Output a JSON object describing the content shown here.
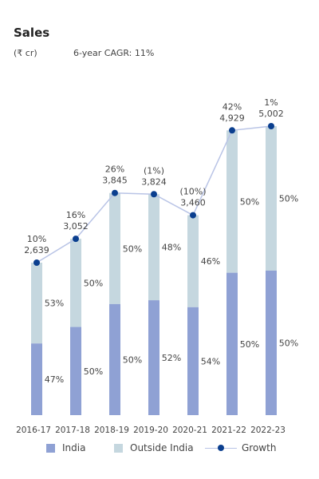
{
  "header": {
    "title": "Sales",
    "unit": "(₹ cr)",
    "cagr": "6-year CAGR: 11%"
  },
  "colors": {
    "india": "#8fa1d4",
    "outside": "#c5d7df",
    "growth_line": "#b9c4e6",
    "growth_dot": "#0b3f8f"
  },
  "chart_data": {
    "type": "bar",
    "stacked": true,
    "categories": [
      "2016-17",
      "2017-18",
      "2018-19",
      "2019-20",
      "2020-21",
      "2021-22",
      "2022-23"
    ],
    "totals": [
      2639,
      3052,
      3845,
      3824,
      3460,
      4929,
      5002
    ],
    "total_labels": [
      "2,639",
      "3,052",
      "3,845",
      "3,824",
      "3,460",
      "4,929",
      "5,002"
    ],
    "growth_labels": [
      "10%",
      "16%",
      "26%",
      "(1%)",
      "(10%)",
      "42%",
      "1%"
    ],
    "series": [
      {
        "name": "India",
        "share_pct": [
          47,
          50,
          50,
          52,
          54,
          50,
          50
        ],
        "labels": [
          "47%",
          "50%",
          "50%",
          "52%",
          "54%",
          "50%",
          "50%"
        ]
      },
      {
        "name": "Outside India",
        "share_pct": [
          53,
          50,
          50,
          48,
          46,
          50,
          50
        ],
        "labels": [
          "53%",
          "50%",
          "50%",
          "48%",
          "46%",
          "50%",
          "50%"
        ]
      }
    ],
    "line_series": {
      "name": "Growth"
    },
    "ylim": [
      0,
      5002
    ],
    "legend": {
      "position": "bottom",
      "items": [
        "India",
        "Outside India",
        "Growth"
      ]
    }
  }
}
